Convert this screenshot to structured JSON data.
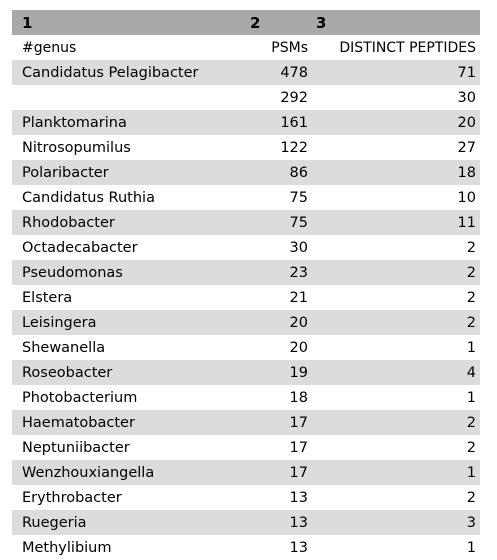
{
  "column_numbers": [
    "1",
    "2",
    "3"
  ],
  "headers": {
    "genus": "#genus",
    "psms": "PSMs",
    "distinct_peptides": "DISTINCT PEPTIDES"
  },
  "rows": [
    {
      "genus": "Candidatus Pelagibacter",
      "psms": "478",
      "peptides": "71"
    },
    {
      "genus": "",
      "psms": "292",
      "peptides": "30"
    },
    {
      "genus": "Planktomarina",
      "psms": "161",
      "peptides": "20"
    },
    {
      "genus": "Nitrosopumilus",
      "psms": "122",
      "peptides": "27"
    },
    {
      "genus": "Polaribacter",
      "psms": "86",
      "peptides": "18"
    },
    {
      "genus": "Candidatus Ruthia",
      "psms": "75",
      "peptides": "10"
    },
    {
      "genus": "Rhodobacter",
      "psms": "75",
      "peptides": "11"
    },
    {
      "genus": "Octadecabacter",
      "psms": "30",
      "peptides": "2"
    },
    {
      "genus": "Pseudomonas",
      "psms": "23",
      "peptides": "2"
    },
    {
      "genus": "Elstera",
      "psms": "21",
      "peptides": "2"
    },
    {
      "genus": "Leisingera",
      "psms": "20",
      "peptides": "2"
    },
    {
      "genus": "Shewanella",
      "psms": "20",
      "peptides": "1"
    },
    {
      "genus": "Roseobacter",
      "psms": "19",
      "peptides": "4"
    },
    {
      "genus": "Photobacterium",
      "psms": "18",
      "peptides": "1"
    },
    {
      "genus": "Haematobacter",
      "psms": "17",
      "peptides": "2"
    },
    {
      "genus": "Neptuniibacter",
      "psms": "17",
      "peptides": "2"
    },
    {
      "genus": "Wenzhouxiangella",
      "psms": "17",
      "peptides": "1"
    },
    {
      "genus": "Erythrobacter",
      "psms": "13",
      "peptides": "2"
    },
    {
      "genus": "Ruegeria",
      "psms": "13",
      "peptides": "3"
    },
    {
      "genus": "Methylibium",
      "psms": "13",
      "peptides": "1"
    }
  ]
}
